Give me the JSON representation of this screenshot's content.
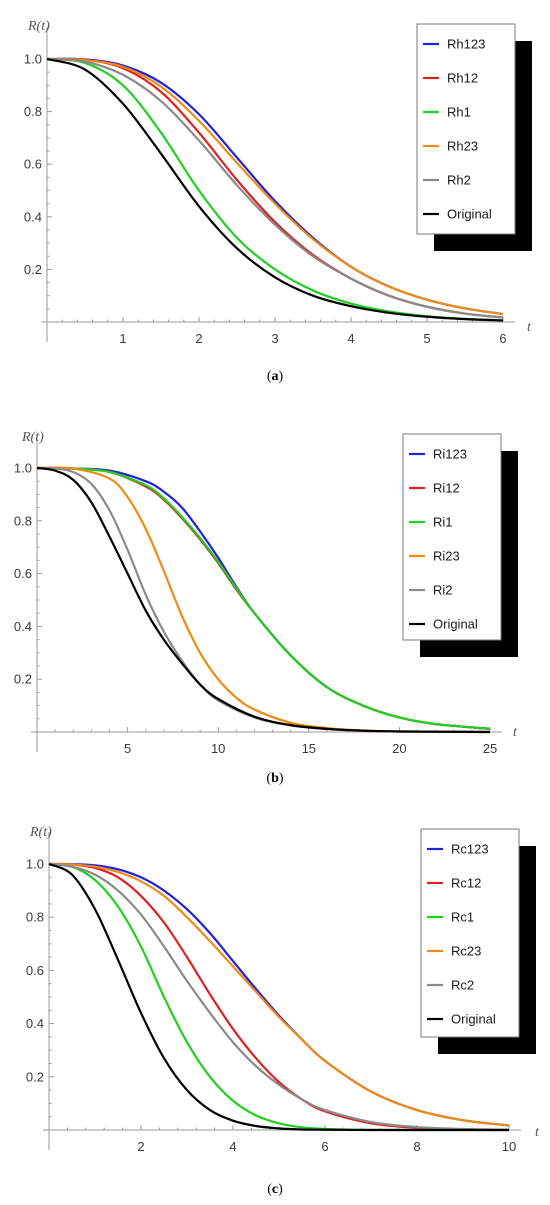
{
  "chart_data": [
    {
      "type": "line",
      "panel": "a",
      "caption_letter": "a",
      "ylabel": "R(t)",
      "xlabel": "t",
      "xlim": [
        0,
        6
      ],
      "ylim": [
        0,
        1.0
      ],
      "xticks": [
        1,
        2,
        3,
        4,
        5,
        6
      ],
      "yticks": [
        0.2,
        0.4,
        0.6,
        0.8,
        1.0
      ],
      "ytick_labels": [
        "0.2",
        "0.4",
        "0.6",
        "0.8",
        "1.0"
      ],
      "legend": "top-right",
      "series": [
        {
          "name": "Rh123",
          "color": "#2020e0",
          "x": [
            0,
            0.5,
            1,
            1.5,
            2,
            2.5,
            3,
            3.5,
            4,
            4.5,
            5,
            5.5,
            6
          ],
          "y": [
            1.0,
            0.998,
            0.975,
            0.91,
            0.79,
            0.625,
            0.46,
            0.32,
            0.21,
            0.135,
            0.085,
            0.052,
            0.03
          ]
        },
        {
          "name": "Rh12",
          "color": "#e02020",
          "x": [
            0,
            0.5,
            1,
            1.5,
            2,
            2.5,
            3,
            3.5,
            4,
            4.5,
            5,
            5.5,
            6
          ],
          "y": [
            1.0,
            0.997,
            0.965,
            0.875,
            0.72,
            0.54,
            0.38,
            0.255,
            0.165,
            0.1,
            0.058,
            0.032,
            0.017
          ]
        },
        {
          "name": "Rh1",
          "color": "#20d020",
          "x": [
            0,
            0.5,
            1,
            1.5,
            2,
            2.5,
            3,
            3.5,
            4,
            4.5,
            5,
            5.5,
            6
          ],
          "y": [
            1.0,
            0.985,
            0.9,
            0.72,
            0.5,
            0.32,
            0.2,
            0.12,
            0.07,
            0.04,
            0.022,
            0.012,
            0.006
          ]
        },
        {
          "name": "Rh23",
          "color": "#f08a10",
          "x": [
            0,
            0.5,
            1,
            1.5,
            2,
            2.5,
            3,
            3.5,
            4,
            4.5,
            5,
            5.5,
            6
          ],
          "y": [
            1.0,
            0.996,
            0.97,
            0.895,
            0.765,
            0.605,
            0.45,
            0.315,
            0.21,
            0.135,
            0.085,
            0.052,
            0.03
          ]
        },
        {
          "name": "Rh2",
          "color": "#8a8a8a",
          "x": [
            0,
            0.5,
            1,
            1.5,
            2,
            2.5,
            3,
            3.5,
            4,
            4.5,
            5,
            5.5,
            6
          ],
          "y": [
            1.0,
            0.99,
            0.94,
            0.84,
            0.69,
            0.52,
            0.37,
            0.25,
            0.165,
            0.1,
            0.058,
            0.032,
            0.017
          ]
        },
        {
          "name": "Original",
          "color": "#000000",
          "x": [
            0,
            0.5,
            1,
            1.5,
            2,
            2.5,
            3,
            3.5,
            4,
            4.5,
            5,
            5.5,
            6
          ],
          "y": [
            1.0,
            0.96,
            0.83,
            0.64,
            0.44,
            0.28,
            0.17,
            0.1,
            0.06,
            0.035,
            0.02,
            0.011,
            0.006
          ]
        }
      ]
    },
    {
      "type": "line",
      "panel": "b",
      "caption_letter": "b",
      "ylabel": "R(t)",
      "xlabel": "t",
      "xlim": [
        0,
        25
      ],
      "ylim": [
        0,
        1.0
      ],
      "xticks": [
        5,
        10,
        15,
        20,
        25
      ],
      "yticks": [
        0.2,
        0.4,
        0.6,
        0.8,
        1.0
      ],
      "ytick_labels": [
        "0.2",
        "0.4",
        "0.6",
        "0.8",
        "1.0"
      ],
      "legend": "top-right",
      "series": [
        {
          "name": "Ri123",
          "color": "#2020e0",
          "x": [
            0,
            2,
            4,
            6,
            7,
            8,
            9,
            10,
            11,
            12,
            14,
            16,
            18,
            20,
            22,
            25
          ],
          "y": [
            1.0,
            0.998,
            0.99,
            0.95,
            0.91,
            0.85,
            0.76,
            0.66,
            0.55,
            0.45,
            0.29,
            0.17,
            0.1,
            0.055,
            0.03,
            0.012
          ]
        },
        {
          "name": "Ri12",
          "color": "#e02020",
          "x": [
            0,
            2,
            4,
            6,
            7,
            8,
            9,
            10,
            11,
            12,
            14,
            16,
            18,
            20,
            22,
            25
          ],
          "y": [
            1.0,
            0.998,
            0.985,
            0.93,
            0.88,
            0.81,
            0.73,
            0.64,
            0.54,
            0.45,
            0.29,
            0.17,
            0.1,
            0.055,
            0.03,
            0.012
          ]
        },
        {
          "name": "Ri1",
          "color": "#20d020",
          "x": [
            0,
            2,
            4,
            6,
            7,
            8,
            9,
            10,
            11,
            12,
            14,
            16,
            18,
            20,
            22,
            25
          ],
          "y": [
            1.0,
            0.998,
            0.985,
            0.935,
            0.885,
            0.815,
            0.735,
            0.645,
            0.545,
            0.45,
            0.29,
            0.17,
            0.1,
            0.055,
            0.03,
            0.012
          ]
        },
        {
          "name": "Ri23",
          "color": "#f08a10",
          "x": [
            0,
            2,
            4,
            5,
            6,
            7,
            8,
            9,
            10,
            11,
            12,
            14,
            16,
            18,
            20,
            25
          ],
          "y": [
            1.0,
            0.998,
            0.96,
            0.89,
            0.77,
            0.61,
            0.44,
            0.3,
            0.2,
            0.13,
            0.085,
            0.035,
            0.015,
            0.006,
            0.002,
            0.0
          ]
        },
        {
          "name": "Ri2",
          "color": "#8a8a8a",
          "x": [
            0,
            1,
            2,
            3,
            4,
            5,
            6,
            7,
            8,
            9,
            10,
            12,
            14,
            16,
            18,
            20,
            25
          ],
          "y": [
            1.0,
            0.998,
            0.985,
            0.94,
            0.84,
            0.69,
            0.52,
            0.38,
            0.27,
            0.18,
            0.12,
            0.055,
            0.025,
            0.011,
            0.005,
            0.002,
            0.0
          ]
        },
        {
          "name": "Original",
          "color": "#000000",
          "x": [
            0,
            1,
            2,
            3,
            4,
            5,
            6,
            7,
            8,
            9,
            10,
            12,
            14,
            16,
            18,
            20,
            25
          ],
          "y": [
            1.0,
            0.99,
            0.955,
            0.87,
            0.74,
            0.6,
            0.46,
            0.35,
            0.26,
            0.18,
            0.125,
            0.058,
            0.026,
            0.012,
            0.005,
            0.002,
            0.0
          ]
        }
      ]
    },
    {
      "type": "line",
      "panel": "c",
      "caption_letter": "c",
      "ylabel": "R(t)",
      "xlabel": "t",
      "xlim": [
        0,
        10
      ],
      "ylim": [
        0,
        1.0
      ],
      "xticks": [
        2,
        4,
        6,
        8,
        10
      ],
      "yticks": [
        0.2,
        0.4,
        0.6,
        0.8,
        1.0
      ],
      "ytick_labels": [
        "0.2",
        "0.4",
        "0.6",
        "0.8",
        "1.0"
      ],
      "legend": "top-right",
      "series": [
        {
          "name": "Rc123",
          "color": "#2020e0",
          "x": [
            0,
            0.5,
            1,
            1.5,
            2,
            2.5,
            3,
            3.5,
            4,
            4.5,
            5,
            5.5,
            6,
            7,
            8,
            9,
            10
          ],
          "y": [
            1.0,
            0.999,
            0.995,
            0.98,
            0.95,
            0.9,
            0.83,
            0.74,
            0.635,
            0.53,
            0.43,
            0.34,
            0.26,
            0.145,
            0.075,
            0.037,
            0.017
          ]
        },
        {
          "name": "Rc12",
          "color": "#e02020",
          "x": [
            0,
            0.5,
            1,
            1.5,
            2,
            2.5,
            3,
            3.5,
            4,
            4.5,
            5,
            5.5,
            6,
            7,
            8,
            9,
            10
          ],
          "y": [
            1.0,
            0.998,
            0.985,
            0.95,
            0.88,
            0.78,
            0.65,
            0.51,
            0.38,
            0.27,
            0.18,
            0.115,
            0.07,
            0.025,
            0.008,
            0.002,
            0.001
          ]
        },
        {
          "name": "Rc1",
          "color": "#20d020",
          "x": [
            0,
            0.5,
            1,
            1.5,
            2,
            2.5,
            3,
            3.5,
            4,
            4.5,
            5,
            5.5,
            6,
            7,
            8,
            9,
            10
          ],
          "y": [
            1.0,
            0.99,
            0.94,
            0.84,
            0.69,
            0.5,
            0.33,
            0.2,
            0.11,
            0.055,
            0.025,
            0.01,
            0.004,
            0.0005,
            0.0,
            0.0,
            0.0
          ]
        },
        {
          "name": "Rc23",
          "color": "#f08a10",
          "x": [
            0,
            0.5,
            1,
            1.5,
            2,
            2.5,
            3,
            3.5,
            4,
            4.5,
            5,
            5.5,
            6,
            7,
            8,
            9,
            10
          ],
          "y": [
            1.0,
            0.998,
            0.99,
            0.97,
            0.935,
            0.88,
            0.8,
            0.71,
            0.615,
            0.52,
            0.425,
            0.34,
            0.26,
            0.145,
            0.075,
            0.037,
            0.017
          ]
        },
        {
          "name": "Rc2",
          "color": "#8a8a8a",
          "x": [
            0,
            0.5,
            1,
            1.5,
            2,
            2.5,
            3,
            3.5,
            4,
            4.5,
            5,
            5.5,
            6,
            7,
            8,
            9,
            10
          ],
          "y": [
            1.0,
            0.99,
            0.96,
            0.9,
            0.81,
            0.69,
            0.56,
            0.44,
            0.33,
            0.24,
            0.17,
            0.115,
            0.075,
            0.03,
            0.011,
            0.004,
            0.001
          ]
        },
        {
          "name": "Original",
          "color": "#000000",
          "x": [
            0,
            0.5,
            1,
            1.5,
            2,
            2.5,
            3,
            3.5,
            4,
            4.5,
            5,
            5.5,
            6,
            7,
            8,
            9,
            10
          ],
          "y": [
            1.0,
            0.96,
            0.83,
            0.64,
            0.44,
            0.27,
            0.15,
            0.075,
            0.035,
            0.015,
            0.006,
            0.002,
            0.001,
            0.0,
            0.0,
            0.0,
            0.0
          ]
        }
      ]
    }
  ]
}
